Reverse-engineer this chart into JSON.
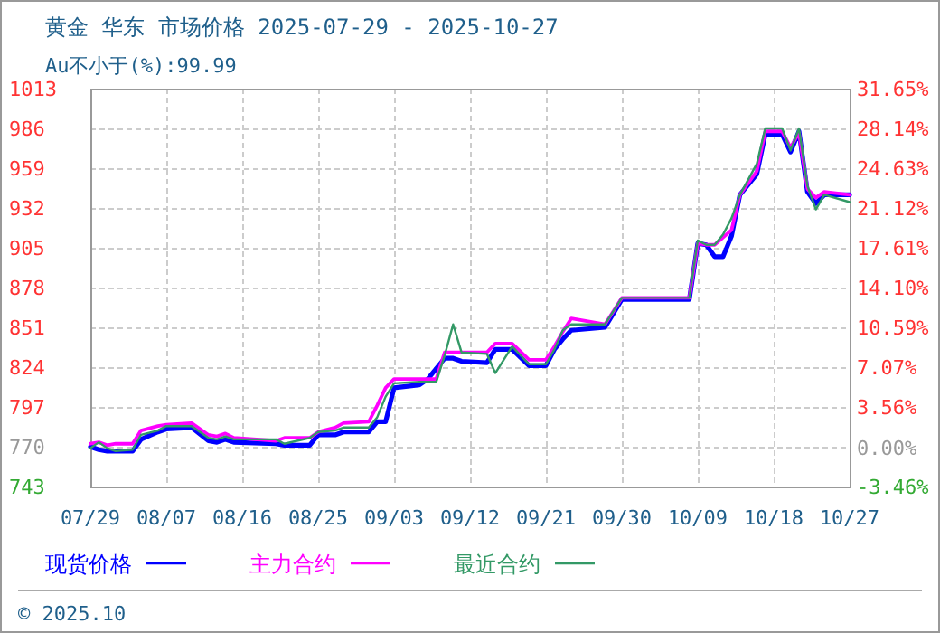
{
  "chart_data": {
    "type": "line",
    "title": "黄金 华东 市场价格 2025-07-29 - 2025-10-27",
    "subtitle": "Au不小于(%):99.99",
    "annotations": [
      "© 2025.10"
    ],
    "x": [
      "2025-07-29",
      "2025-07-30",
      "2025-07-31",
      "2025-08-01",
      "2025-08-03",
      "2025-08-04",
      "2025-08-06",
      "2025-08-07",
      "2025-08-10",
      "2025-08-12",
      "2025-08-13",
      "2025-08-14",
      "2025-08-15",
      "2025-08-20",
      "2025-08-21",
      "2025-08-24",
      "2025-08-25",
      "2025-08-27",
      "2025-08-28",
      "2025-08-31",
      "2025-09-01",
      "2025-09-02",
      "2025-09-03",
      "2025-09-06",
      "2025-09-07",
      "2025-09-08",
      "2025-09-09",
      "2025-09-10",
      "2025-09-11",
      "2025-09-14",
      "2025-09-15",
      "2025-09-17",
      "2025-09-19",
      "2025-09-21",
      "2025-09-22",
      "2025-09-23",
      "2025-09-24",
      "2025-09-28",
      "2025-09-30",
      "2025-10-08",
      "2025-10-09",
      "2025-10-10",
      "2025-10-11",
      "2025-10-12",
      "2025-10-13",
      "2025-10-14",
      "2025-10-16",
      "2025-10-17",
      "2025-10-19",
      "2025-10-20",
      "2025-10-21",
      "2025-10-22",
      "2025-10-23",
      "2025-10-24",
      "2025-10-27"
    ],
    "series": [
      {
        "name": "现货价格",
        "color": "#0000ff",
        "values": [
          770,
          768,
          767,
          767,
          767,
          775,
          780,
          782,
          783,
          774,
          773,
          775,
          773,
          772,
          771,
          771,
          778,
          778,
          780,
          780,
          787,
          787,
          810,
          812,
          816,
          823,
          830,
          830,
          828,
          827,
          836,
          836,
          825,
          825,
          836,
          843,
          849,
          851,
          870,
          870,
          908,
          907,
          899,
          899,
          913,
          941,
          955,
          982,
          982,
          970,
          984,
          943,
          935,
          941,
          941
        ]
      },
      {
        "name": "主力合约",
        "color": "#ff00ff",
        "values": [
          772,
          773,
          771,
          772,
          772,
          781,
          784,
          785,
          786,
          778,
          777,
          779,
          776,
          774,
          776,
          776,
          780,
          783,
          786,
          787,
          798,
          810,
          816,
          816,
          816,
          816,
          834,
          834,
          834,
          834,
          840,
          840,
          829,
          829,
          838,
          848,
          857,
          853,
          871,
          871,
          908,
          907,
          907,
          912,
          917,
          941,
          957,
          984,
          984,
          973,
          983,
          945,
          939,
          943,
          941
        ]
      },
      {
        "name": "最近合约",
        "color": "#339966",
        "values": [
          769,
          773,
          769,
          767,
          768,
          778,
          781,
          784,
          784,
          776,
          775,
          777,
          775,
          775,
          772,
          776,
          780,
          781,
          783,
          783,
          790,
          804,
          813,
          814,
          814,
          814,
          832,
          853,
          834,
          833,
          820,
          838,
          826,
          826,
          836,
          849,
          853,
          853,
          871,
          871,
          910,
          907,
          907,
          914,
          925,
          941,
          962,
          986,
          986,
          971,
          986,
          947,
          931,
          941,
          936
        ]
      }
    ],
    "xlim": [
      "2025-07-29",
      "2025-10-27"
    ],
    "xticks": [
      {
        "value": "2025-07-29",
        "label": "07/29"
      },
      {
        "value": "2025-08-07",
        "label": "08/07"
      },
      {
        "value": "2025-08-16",
        "label": "08/16"
      },
      {
        "value": "2025-08-25",
        "label": "08/25"
      },
      {
        "value": "2025-09-03",
        "label": "09/03"
      },
      {
        "value": "2025-09-12",
        "label": "09/12"
      },
      {
        "value": "2025-09-21",
        "label": "09/21"
      },
      {
        "value": "2025-09-30",
        "label": "09/30"
      },
      {
        "value": "2025-10-09",
        "label": "10/09"
      },
      {
        "value": "2025-10-18",
        "label": "10/18"
      },
      {
        "value": "2025-10-27",
        "label": "10/27"
      }
    ],
    "ylim": [
      743,
      1013
    ],
    "yticks": [
      743,
      770,
      797,
      824,
      851,
      878,
      905,
      932,
      959,
      986,
      1013
    ],
    "y2lim": [
      -3.46,
      31.65
    ],
    "y2ticks": [
      {
        "value": -3.46,
        "label": "-3.46%"
      },
      {
        "value": 0,
        "label": "0.00%"
      },
      {
        "value": 3.56,
        "label": "3.56%"
      },
      {
        "value": 7.07,
        "label": "7.07%"
      },
      {
        "value": 10.59,
        "label": "10.59%"
      },
      {
        "value": 14.1,
        "label": "14.10%"
      },
      {
        "value": 17.61,
        "label": "17.61%"
      },
      {
        "value": 21.12,
        "label": "21.12%"
      },
      {
        "value": 24.63,
        "label": "24.63%"
      },
      {
        "value": 28.14,
        "label": "28.14%"
      },
      {
        "value": 31.65,
        "label": "31.65%"
      }
    ],
    "grid": true,
    "legend": "bottom"
  }
}
